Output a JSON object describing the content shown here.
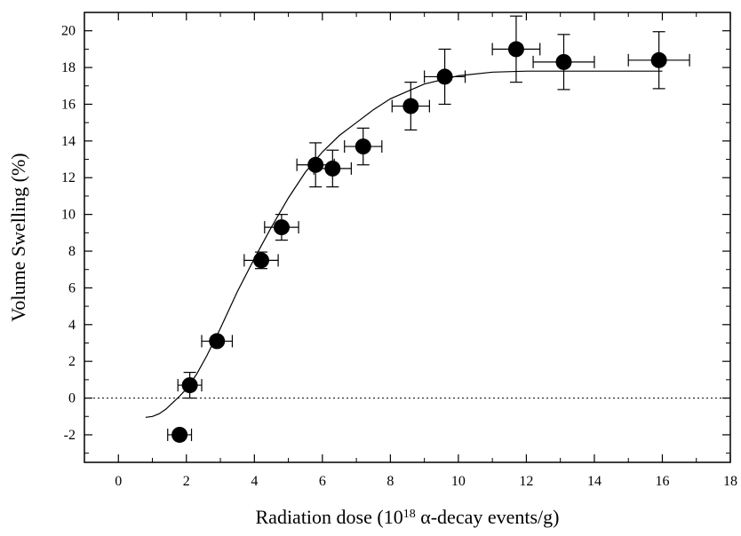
{
  "chart_data": {
    "type": "scatter",
    "xlabel": "Radiation dose (10",
    "xlabel_sup": "18",
    "xlabel_tail": " α-decay events/g)",
    "ylabel": "Volume Swelling (%)",
    "xlim": [
      -1,
      18
    ],
    "ylim": [
      -3.5,
      21
    ],
    "x_ticks": [
      0,
      2,
      4,
      6,
      8,
      10,
      12,
      14,
      16,
      18
    ],
    "y_ticks": [
      -2,
      0,
      2,
      4,
      6,
      8,
      10,
      12,
      14,
      16,
      18,
      20
    ],
    "x_ticks_labels": [
      "0",
      "2",
      "4",
      "6",
      "8",
      "10",
      "12",
      "14",
      "16",
      "18"
    ],
    "y_ticks_labels": [
      "-2",
      "0",
      "2",
      "4",
      "6",
      "8",
      "10",
      "12",
      "14",
      "16",
      "18",
      "20"
    ],
    "grid": false,
    "reference_line_y": 0,
    "points": [
      {
        "x": 1.8,
        "y": -2.0,
        "xerr": 0.35,
        "yerr": 0.0
      },
      {
        "x": 2.1,
        "y": 0.7,
        "xerr": 0.35,
        "yerr": 0.7
      },
      {
        "x": 2.9,
        "y": 3.1,
        "xerr": 0.45,
        "yerr": 0.0
      },
      {
        "x": 4.2,
        "y": 7.5,
        "xerr": 0.5,
        "yerr": 0.45
      },
      {
        "x": 4.8,
        "y": 9.3,
        "xerr": 0.5,
        "yerr": 0.7
      },
      {
        "x": 5.8,
        "y": 12.7,
        "xerr": 0.55,
        "yerr": 1.2
      },
      {
        "x": 6.3,
        "y": 12.5,
        "xerr": 0.55,
        "yerr": 1.0
      },
      {
        "x": 7.2,
        "y": 13.7,
        "xerr": 0.55,
        "yerr": 1.0
      },
      {
        "x": 8.6,
        "y": 15.9,
        "xerr": 0.55,
        "yerr": 1.3
      },
      {
        "x": 9.6,
        "y": 17.5,
        "xerr": 0.6,
        "yerr": 1.5
      },
      {
        "x": 11.7,
        "y": 19.0,
        "xerr": 0.7,
        "yerr": 1.8
      },
      {
        "x": 13.1,
        "y": 18.3,
        "xerr": 0.9,
        "yerr": 1.5
      },
      {
        "x": 15.9,
        "y": 18.4,
        "xerr": 0.9,
        "yerr": 1.55
      }
    ],
    "fit_curve": {
      "x": [
        0.8,
        1.0,
        1.2,
        1.4,
        1.6,
        1.8,
        2.0,
        2.3,
        2.6,
        3.0,
        3.5,
        4.0,
        4.5,
        5.0,
        5.5,
        6.0,
        6.5,
        7.0,
        7.5,
        8.0,
        9.0,
        10.0,
        11.0,
        12.0,
        13.0,
        14.0,
        15.0,
        16.0
      ],
      "y": [
        -1.05,
        -1.0,
        -0.85,
        -0.6,
        -0.25,
        0.1,
        0.5,
        1.3,
        2.3,
        3.8,
        5.8,
        7.6,
        9.3,
        10.9,
        12.3,
        13.4,
        14.3,
        15.0,
        15.7,
        16.3,
        17.1,
        17.55,
        17.75,
        17.8,
        17.8,
        17.8,
        17.8,
        17.8
      ]
    }
  }
}
